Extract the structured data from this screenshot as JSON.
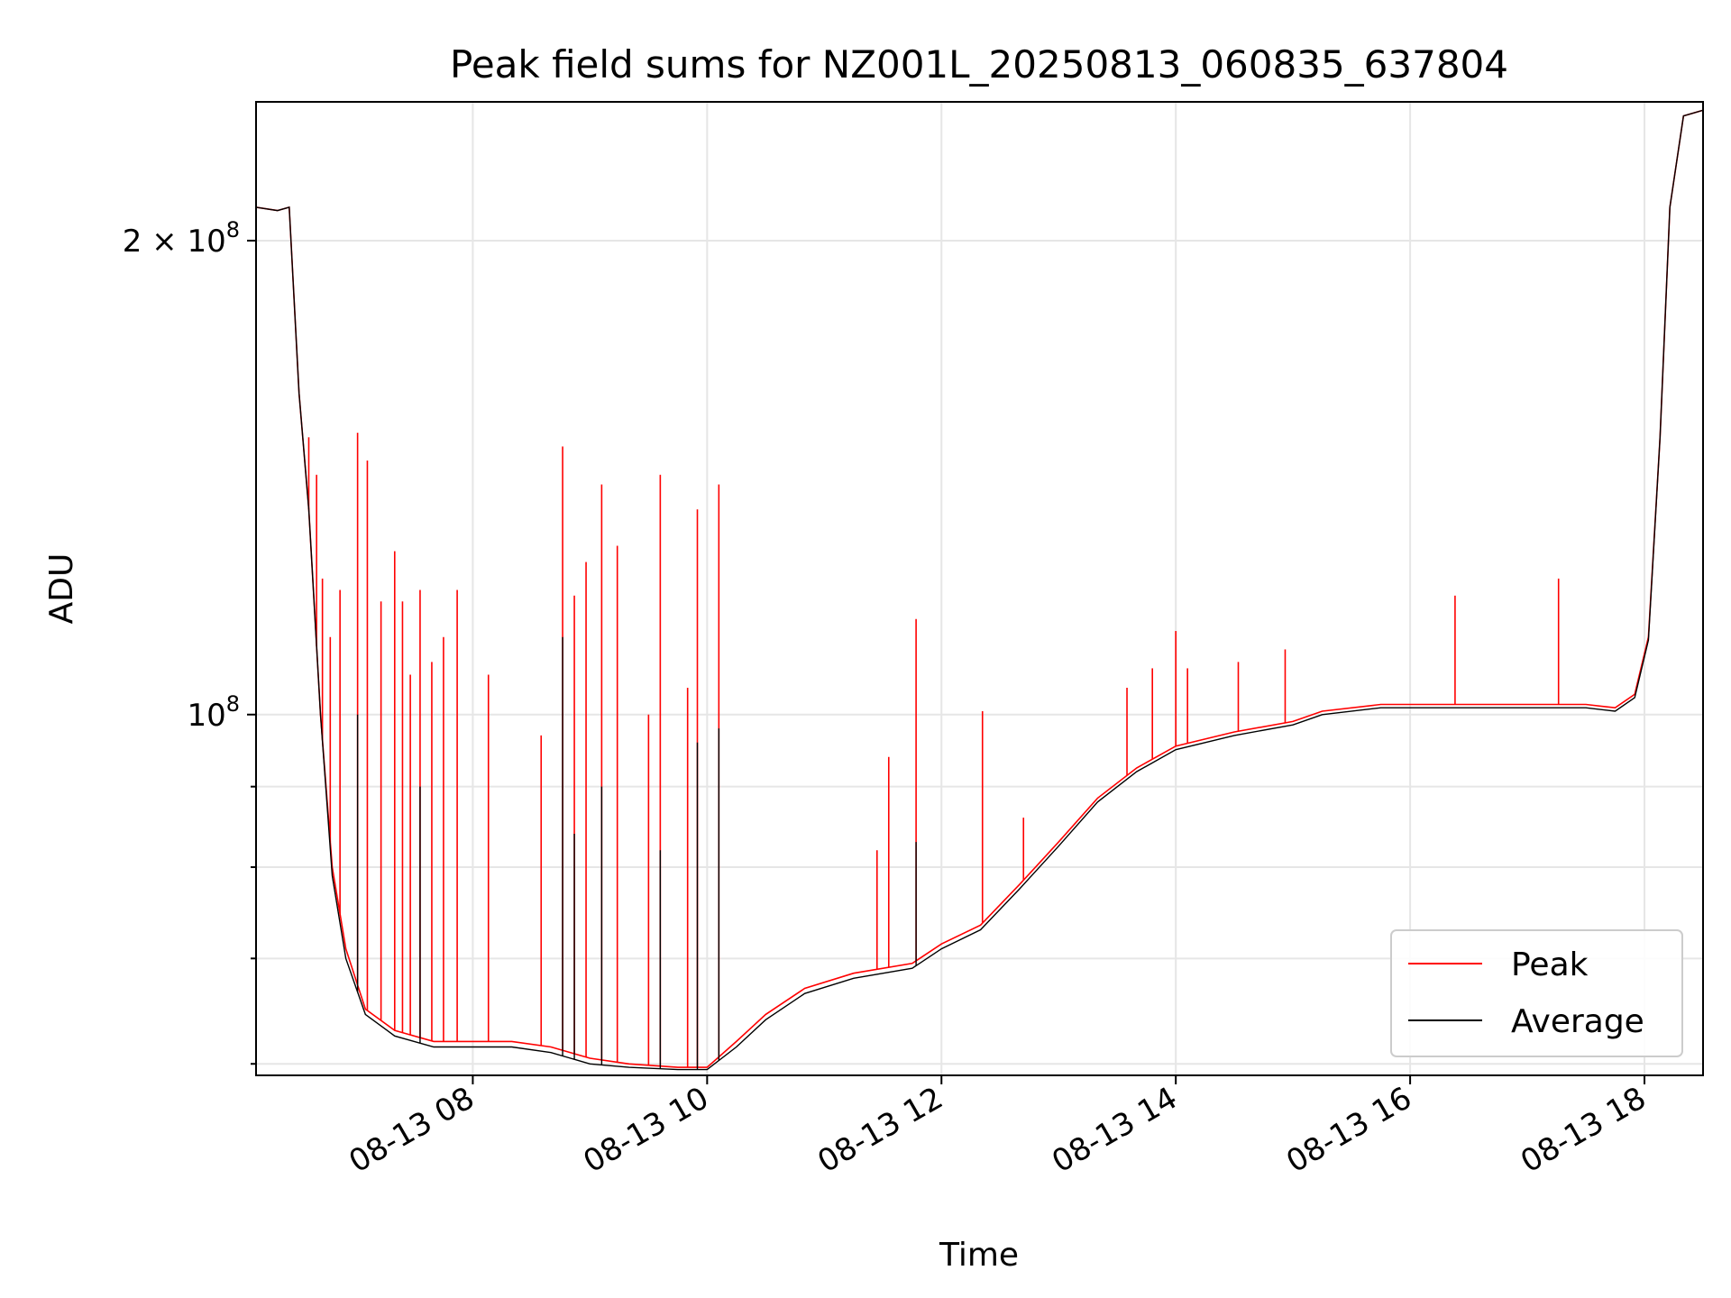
{
  "chart_data": {
    "type": "line",
    "title": "Peak field sums for NZ001L_20250813_060835_637804",
    "xlabel": "Time",
    "ylabel": "ADU",
    "yscale": "log",
    "xlim": [
      "2025-08-13 06:09",
      "2025-08-13 18:30"
    ],
    "ylim": [
      59000000,
      245000000
    ],
    "grid": true,
    "legend_position": "lower-right",
    "x_ticks": [
      "2025-08-13 08:00",
      "2025-08-13 10:00",
      "2025-08-13 12:00",
      "2025-08-13 14:00",
      "2025-08-13 16:00",
      "2025-08-13 18:00"
    ],
    "x_tick_labels": [
      "08-13 08",
      "08-13 10",
      "08-13 12",
      "08-13 14",
      "08-13 16",
      "08-13 18"
    ],
    "y_major_ticks": [
      100000000,
      200000000
    ],
    "y_major_tick_labels": [
      {
        "mantissa": "",
        "exponent": "8"
      },
      {
        "mantissa": "2",
        "exponent": "8"
      }
    ],
    "y_minor_ticks": [
      60000000,
      70000000,
      80000000,
      90000000
    ],
    "series": [
      {
        "name": "Peak",
        "color": "#ff0000",
        "baseline": [
          [
            "2025-08-13 06:09",
            210000000
          ],
          [
            "2025-08-13 06:20",
            209000000
          ],
          [
            "2025-08-13 06:26",
            210000000
          ],
          [
            "2025-08-13 06:31",
            160000000
          ],
          [
            "2025-08-13 06:36",
            135000000
          ],
          [
            "2025-08-13 06:42",
            100000000
          ],
          [
            "2025-08-13 06:48",
            80000000
          ],
          [
            "2025-08-13 06:55",
            71000000
          ],
          [
            "2025-08-13 07:05",
            65000000
          ],
          [
            "2025-08-13 07:20",
            63000000
          ],
          [
            "2025-08-13 07:40",
            62000000
          ],
          [
            "2025-08-13 08:00",
            62000000
          ],
          [
            "2025-08-13 08:20",
            62000000
          ],
          [
            "2025-08-13 08:40",
            61500000
          ],
          [
            "2025-08-13 09:00",
            60500000
          ],
          [
            "2025-08-13 09:20",
            60000000
          ],
          [
            "2025-08-13 09:45",
            59700000
          ],
          [
            "2025-08-13 10:00",
            59700000
          ],
          [
            "2025-08-13 10:15",
            62000000
          ],
          [
            "2025-08-13 10:30",
            64500000
          ],
          [
            "2025-08-13 10:50",
            67000000
          ],
          [
            "2025-08-13 11:15",
            68500000
          ],
          [
            "2025-08-13 11:45",
            69500000
          ],
          [
            "2025-08-13 12:00",
            71500000
          ],
          [
            "2025-08-13 12:20",
            73500000
          ],
          [
            "2025-08-13 12:40",
            78000000
          ],
          [
            "2025-08-13 13:00",
            83000000
          ],
          [
            "2025-08-13 13:20",
            88500000
          ],
          [
            "2025-08-13 13:40",
            92500000
          ],
          [
            "2025-08-13 14:00",
            95500000
          ],
          [
            "2025-08-13 14:30",
            97500000
          ],
          [
            "2025-08-13 15:00",
            99000000
          ],
          [
            "2025-08-13 15:15",
            100500000
          ],
          [
            "2025-08-13 15:45",
            101500000
          ],
          [
            "2025-08-13 16:30",
            101500000
          ],
          [
            "2025-08-13 17:30",
            101500000
          ],
          [
            "2025-08-13 17:45",
            101000000
          ],
          [
            "2025-08-13 17:55",
            103000000
          ],
          [
            "2025-08-13 18:02",
            112000000
          ],
          [
            "2025-08-13 18:08",
            150000000
          ],
          [
            "2025-08-13 18:13",
            210000000
          ],
          [
            "2025-08-13 18:20",
            240000000
          ],
          [
            "2025-08-13 18:30",
            242000000
          ]
        ],
        "spikes": [
          [
            "2025-08-13 06:36",
            150000000
          ],
          [
            "2025-08-13 06:40",
            142000000
          ],
          [
            "2025-08-13 06:43",
            122000000
          ],
          [
            "2025-08-13 06:47",
            112000000
          ],
          [
            "2025-08-13 06:52",
            120000000
          ],
          [
            "2025-08-13 07:01",
            151000000
          ],
          [
            "2025-08-13 07:06",
            145000000
          ],
          [
            "2025-08-13 07:13",
            118000000
          ],
          [
            "2025-08-13 07:20",
            127000000
          ],
          [
            "2025-08-13 07:24",
            118000000
          ],
          [
            "2025-08-13 07:28",
            106000000
          ],
          [
            "2025-08-13 07:33",
            120000000
          ],
          [
            "2025-08-13 07:39",
            108000000
          ],
          [
            "2025-08-13 07:45",
            112000000
          ],
          [
            "2025-08-13 07:52",
            120000000
          ],
          [
            "2025-08-13 08:08",
            106000000
          ],
          [
            "2025-08-13 08:35",
            97000000
          ],
          [
            "2025-08-13 08:46",
            148000000
          ],
          [
            "2025-08-13 08:52",
            119000000
          ],
          [
            "2025-08-13 08:58",
            125000000
          ],
          [
            "2025-08-13 09:06",
            140000000
          ],
          [
            "2025-08-13 09:14",
            128000000
          ],
          [
            "2025-08-13 09:30",
            100000000
          ],
          [
            "2025-08-13 09:36",
            142000000
          ],
          [
            "2025-08-13 09:50",
            104000000
          ],
          [
            "2025-08-13 09:55",
            135000000
          ],
          [
            "2025-08-13 10:06",
            140000000
          ],
          [
            "2025-08-13 11:27",
            82000000
          ],
          [
            "2025-08-13 11:33",
            94000000
          ],
          [
            "2025-08-13 11:47",
            115000000
          ],
          [
            "2025-08-13 12:21",
            100500000
          ],
          [
            "2025-08-13 12:42",
            86000000
          ],
          [
            "2025-08-13 13:35",
            104000000
          ],
          [
            "2025-08-13 13:48",
            107000000
          ],
          [
            "2025-08-13 14:00",
            113000000
          ],
          [
            "2025-08-13 14:06",
            107000000
          ],
          [
            "2025-08-13 14:32",
            108000000
          ],
          [
            "2025-08-13 14:56",
            110000000
          ],
          [
            "2025-08-13 16:23",
            119000000
          ],
          [
            "2025-08-13 17:16",
            122000000
          ]
        ]
      },
      {
        "name": "Average",
        "color": "#000000",
        "baseline": [
          [
            "2025-08-13 06:09",
            210000000
          ],
          [
            "2025-08-13 06:20",
            209000000
          ],
          [
            "2025-08-13 06:26",
            210000000
          ],
          [
            "2025-08-13 06:31",
            160000000
          ],
          [
            "2025-08-13 06:36",
            135000000
          ],
          [
            "2025-08-13 06:42",
            100000000
          ],
          [
            "2025-08-13 06:48",
            79000000
          ],
          [
            "2025-08-13 06:55",
            70000000
          ],
          [
            "2025-08-13 07:05",
            64500000
          ],
          [
            "2025-08-13 07:20",
            62500000
          ],
          [
            "2025-08-13 07:40",
            61500000
          ],
          [
            "2025-08-13 08:00",
            61500000
          ],
          [
            "2025-08-13 08:20",
            61500000
          ],
          [
            "2025-08-13 08:40",
            61000000
          ],
          [
            "2025-08-13 09:00",
            60000000
          ],
          [
            "2025-08-13 09:20",
            59700000
          ],
          [
            "2025-08-13 09:45",
            59500000
          ],
          [
            "2025-08-13 10:00",
            59500000
          ],
          [
            "2025-08-13 10:15",
            61500000
          ],
          [
            "2025-08-13 10:30",
            64000000
          ],
          [
            "2025-08-13 10:50",
            66500000
          ],
          [
            "2025-08-13 11:15",
            68000000
          ],
          [
            "2025-08-13 11:45",
            69000000
          ],
          [
            "2025-08-13 12:00",
            71000000
          ],
          [
            "2025-08-13 12:20",
            73000000
          ],
          [
            "2025-08-13 12:40",
            77500000
          ],
          [
            "2025-08-13 13:00",
            82500000
          ],
          [
            "2025-08-13 13:20",
            88000000
          ],
          [
            "2025-08-13 13:40",
            92000000
          ],
          [
            "2025-08-13 14:00",
            95000000
          ],
          [
            "2025-08-13 14:30",
            97000000
          ],
          [
            "2025-08-13 15:00",
            98500000
          ],
          [
            "2025-08-13 15:15",
            100000000
          ],
          [
            "2025-08-13 15:45",
            101000000
          ],
          [
            "2025-08-13 16:30",
            101000000
          ],
          [
            "2025-08-13 17:30",
            101000000
          ],
          [
            "2025-08-13 17:45",
            100500000
          ],
          [
            "2025-08-13 17:55",
            102500000
          ],
          [
            "2025-08-13 18:02",
            111500000
          ],
          [
            "2025-08-13 18:08",
            150000000
          ],
          [
            "2025-08-13 18:13",
            210000000
          ],
          [
            "2025-08-13 18:20",
            240000000
          ],
          [
            "2025-08-13 18:30",
            242000000
          ]
        ],
        "spikes": [
          [
            "2025-08-13 07:01",
            100000000
          ],
          [
            "2025-08-13 07:33",
            90000000
          ],
          [
            "2025-08-13 08:46",
            112000000
          ],
          [
            "2025-08-13 08:52",
            84000000
          ],
          [
            "2025-08-13 09:06",
            90000000
          ],
          [
            "2025-08-13 09:36",
            82000000
          ],
          [
            "2025-08-13 09:55",
            96000000
          ],
          [
            "2025-08-13 10:06",
            98000000
          ],
          [
            "2025-08-13 11:47",
            83000000
          ]
        ]
      }
    ]
  }
}
